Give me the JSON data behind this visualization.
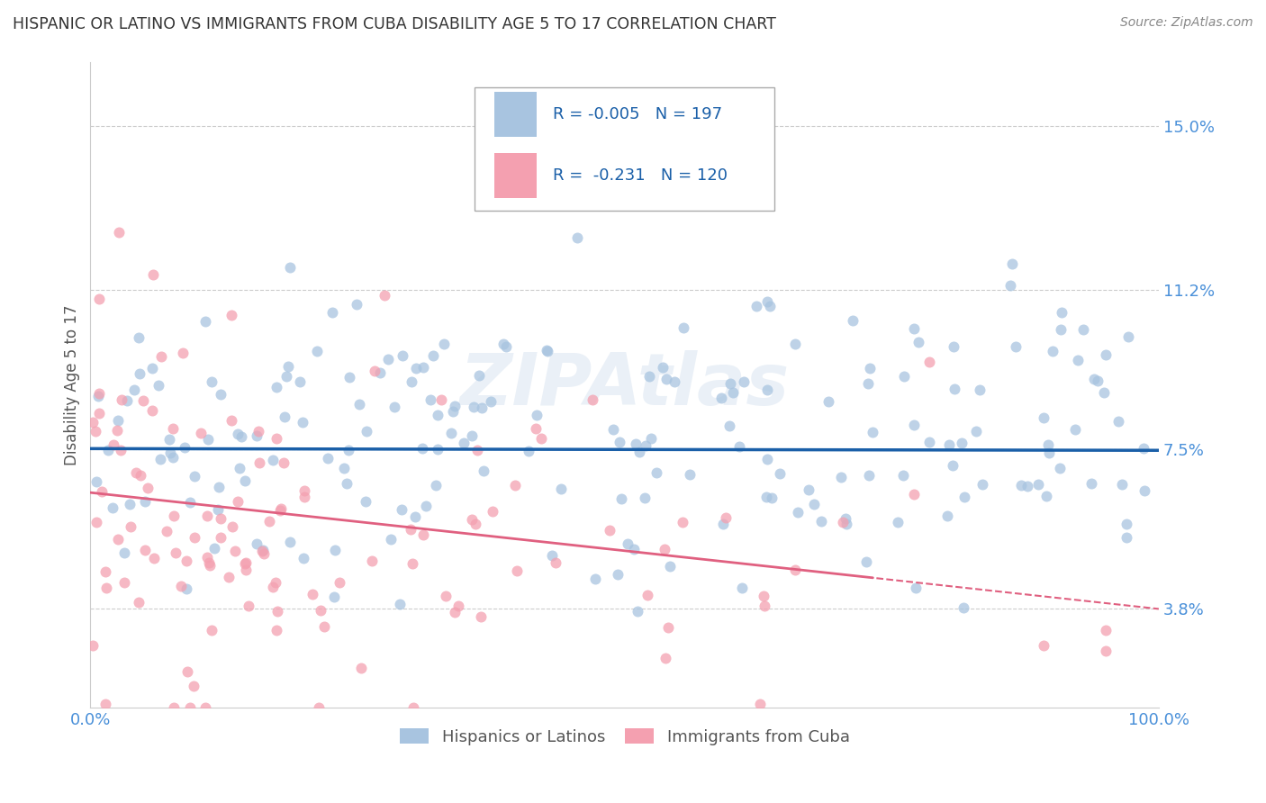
{
  "title": "HISPANIC OR LATINO VS IMMIGRANTS FROM CUBA DISABILITY AGE 5 TO 17 CORRELATION CHART",
  "source": "Source: ZipAtlas.com",
  "ylabel": "Disability Age 5 to 17",
  "xmin": 0.0,
  "xmax": 100.0,
  "ymin": 1.5,
  "ymax": 16.5,
  "yticks": [
    3.8,
    7.5,
    11.2,
    15.0
  ],
  "xticks": [
    0.0,
    100.0
  ],
  "xticklabels": [
    "0.0%",
    "100.0%"
  ],
  "yticklabels": [
    "3.8%",
    "7.5%",
    "11.2%",
    "15.0%"
  ],
  "series1_label": "Hispanics or Latinos",
  "series1_color": "#a8c4e0",
  "series1_R": "-0.005",
  "series1_N": "197",
  "series2_label": "Immigrants from Cuba",
  "series2_color": "#f4a0b0",
  "series2_R": "-0.231",
  "series2_N": "120",
  "trend1_color": "#1a5fa8",
  "trend2_color": "#e06080",
  "watermark": "ZIPAtlas",
  "background_color": "#ffffff",
  "grid_color": "#cccccc",
  "title_color": "#333333",
  "axis_label_color": "#4a90d9",
  "legend_text_color": "#1a5fa8",
  "seed": 42
}
